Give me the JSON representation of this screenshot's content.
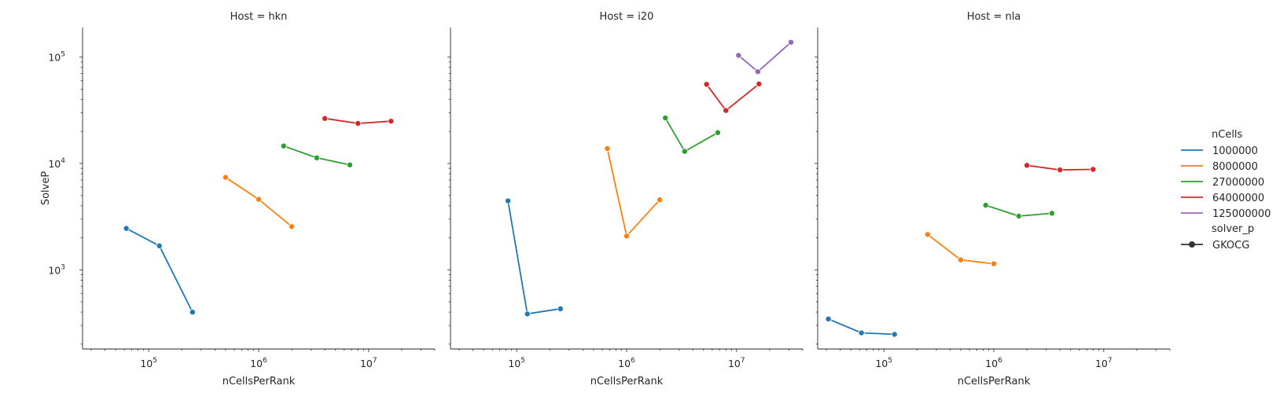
{
  "colors": {
    "1000000": "#1f77b4",
    "8000000": "#ff7f0e",
    "27000000": "#2ca02c",
    "64000000": "#d62728",
    "125000000": "#9467bd"
  },
  "chart_data": [
    {
      "type": "line",
      "title": "Host = hkn",
      "xlabel": "nCellsPerRank",
      "ylabel": "SolveP",
      "xscale": "log",
      "yscale": "log",
      "xlim": [
        25000,
        40000000
      ],
      "ylim": [
        180,
        190000
      ],
      "x_ticks": [
        {
          "value": 100000,
          "base": "10",
          "exp": "5"
        },
        {
          "value": 1000000,
          "base": "10",
          "exp": "6"
        },
        {
          "value": 10000000,
          "base": "10",
          "exp": "7"
        }
      ],
      "y_ticks": [
        {
          "value": 1000,
          "base": "10",
          "exp": "3"
        },
        {
          "value": 10000,
          "base": "10",
          "exp": "4"
        },
        {
          "value": 100000,
          "base": "10",
          "exp": "5"
        }
      ],
      "series": [
        {
          "name": "1000000",
          "x": [
            62500,
            125000,
            250000
          ],
          "y": [
            2450,
            1680,
            400
          ]
        },
        {
          "name": "8000000",
          "x": [
            500000,
            1000000,
            2000000
          ],
          "y": [
            7400,
            4600,
            2550
          ]
        },
        {
          "name": "27000000",
          "x": [
            1687500,
            3375000,
            6750000
          ],
          "y": [
            14600,
            11300,
            9700
          ]
        },
        {
          "name": "64000000",
          "x": [
            4000000,
            8000000,
            16000000
          ],
          "y": [
            26500,
            23800,
            25000
          ]
        }
      ]
    },
    {
      "type": "line",
      "title": "Host = i20",
      "xlabel": "nCellsPerRank",
      "ylabel": "",
      "xscale": "log",
      "yscale": "log",
      "xlim": [
        25000,
        40000000
      ],
      "ylim": [
        180,
        190000
      ],
      "x_ticks": [
        {
          "value": 100000,
          "base": "10",
          "exp": "5"
        },
        {
          "value": 1000000,
          "base": "10",
          "exp": "6"
        },
        {
          "value": 10000000,
          "base": "10",
          "exp": "7"
        }
      ],
      "y_ticks": [],
      "series": [
        {
          "name": "1000000",
          "x": [
            83333,
            125000,
            250000
          ],
          "y": [
            4450,
            385,
            430
          ]
        },
        {
          "name": "8000000",
          "x": [
            666667,
            1000000,
            2000000
          ],
          "y": [
            13800,
            2080,
            4550
          ]
        },
        {
          "name": "27000000",
          "x": [
            2250000,
            3375000,
            6750000
          ],
          "y": [
            26800,
            13000,
            19500
          ]
        },
        {
          "name": "64000000",
          "x": [
            5333333,
            8000000,
            16000000
          ],
          "y": [
            55500,
            31500,
            56000
          ]
        },
        {
          "name": "125000000",
          "x": [
            10416667,
            15625000,
            31250000
          ],
          "y": [
            104000,
            73000,
            138000
          ]
        }
      ]
    },
    {
      "type": "line",
      "title": "Host = nla",
      "xlabel": "nCellsPerRank",
      "ylabel": "",
      "xscale": "log",
      "yscale": "log",
      "xlim": [
        25000,
        40000000
      ],
      "ylim": [
        180,
        190000
      ],
      "x_ticks": [
        {
          "value": 100000,
          "base": "10",
          "exp": "5"
        },
        {
          "value": 1000000,
          "base": "10",
          "exp": "6"
        },
        {
          "value": 10000000,
          "base": "10",
          "exp": "7"
        }
      ],
      "y_ticks": [],
      "series": [
        {
          "name": "1000000",
          "x": [
            31250,
            62500,
            125000
          ],
          "y": [
            345,
            255,
            247
          ]
        },
        {
          "name": "8000000",
          "x": [
            250000,
            500000,
            1000000
          ],
          "y": [
            2150,
            1240,
            1140
          ]
        },
        {
          "name": "27000000",
          "x": [
            843750,
            1687500,
            3375000
          ],
          "y": [
            4050,
            3200,
            3400
          ]
        },
        {
          "name": "64000000",
          "x": [
            2000000,
            4000000,
            8000000
          ],
          "y": [
            9600,
            8700,
            8800
          ]
        }
      ]
    }
  ],
  "legend": {
    "title": "nCells",
    "placement": "right",
    "items": [
      {
        "label": "1000000",
        "key": "1000000"
      },
      {
        "label": "8000000",
        "key": "8000000"
      },
      {
        "label": "27000000",
        "key": "27000000"
      },
      {
        "label": "64000000",
        "key": "64000000"
      },
      {
        "label": "125000000",
        "key": "125000000"
      }
    ],
    "style_title": "solver_p",
    "style_items": [
      {
        "label": "GKOCG"
      }
    ]
  }
}
